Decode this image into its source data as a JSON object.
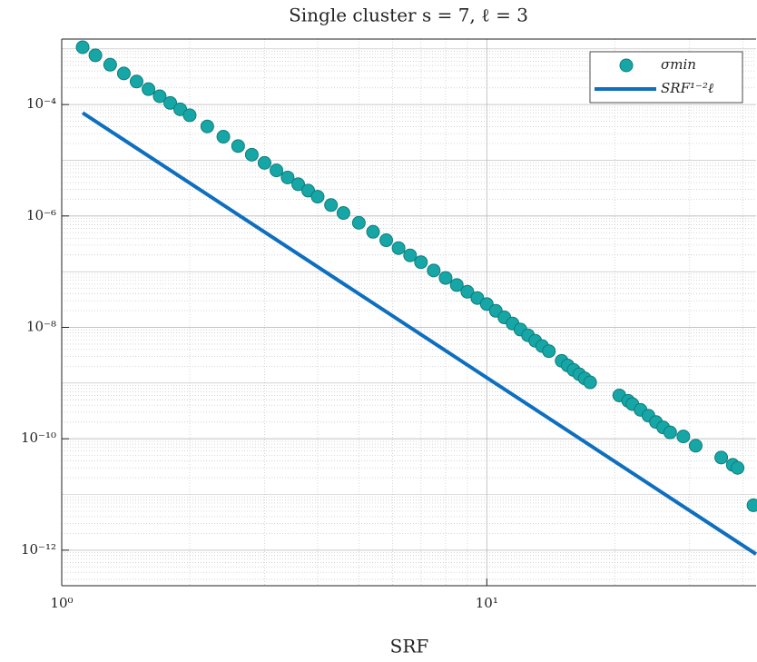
{
  "chart_data": {
    "type": "scatter-line",
    "title": "Single cluster s = 7, ℓ = 3",
    "x_label": "SRF",
    "xscale": "log",
    "yscale": "log",
    "grid": true,
    "legend": "upper right",
    "xlim": [
      1,
      43
    ],
    "ylim": [
      2.3e-13,
      0.0015
    ],
    "xticks": [
      {
        "value": 1,
        "label": "10⁰"
      },
      {
        "value": 10,
        "label": "10¹"
      }
    ],
    "yticks": [
      {
        "value": 0.0001,
        "label": "10⁻⁴"
      },
      {
        "value": 1e-06,
        "label": "10⁻⁶"
      },
      {
        "value": 1e-08,
        "label": "10⁻⁸"
      },
      {
        "value": 1e-10,
        "label": "10⁻¹⁰"
      },
      {
        "value": 1e-12,
        "label": "10⁻¹²"
      }
    ],
    "series": [
      {
        "name": "σmin",
        "kind": "scatter",
        "color": "#17a6a6",
        "edgecolor": "#0e7d7d",
        "x": [
          1.12,
          1.2,
          1.3,
          1.4,
          1.5,
          1.6,
          1.7,
          1.8,
          1.9,
          2.0,
          2.2,
          2.4,
          2.6,
          2.8,
          3.0,
          3.2,
          3.4,
          3.6,
          3.8,
          4.0,
          4.3,
          4.6,
          5.0,
          5.4,
          5.8,
          6.2,
          6.6,
          7.0,
          7.5,
          8.0,
          8.5,
          9.0,
          9.5,
          10,
          10.5,
          11,
          11.5,
          12,
          12.5,
          13,
          13.5,
          14,
          15,
          15.5,
          16,
          16.5,
          17,
          17.5,
          20.5,
          21.5,
          22,
          23,
          24,
          25,
          26,
          27,
          29,
          31,
          35.6,
          37.9,
          38.9,
          42.4
        ],
        "values": [
          0.00107,
          0.000766,
          0.000519,
          0.000362,
          0.000259,
          0.000189,
          0.000141,
          0.000107,
          8.22e-05,
          6.43e-05,
          4.05e-05,
          2.65e-05,
          1.8e-05,
          1.26e-05,
          8.97e-06,
          6.58e-06,
          4.9e-06,
          3.71e-06,
          2.85e-06,
          2.22e-06,
          1.57e-06,
          1.13e-06,
          7.53e-07,
          5.19e-07,
          3.67e-07,
          2.65e-07,
          1.96e-07,
          1.48e-07,
          1.05e-07,
          7.71e-08,
          5.75e-08,
          4.36e-08,
          3.36e-08,
          2.62e-08,
          1.98e-08,
          1.51e-08,
          1.17e-08,
          9.14e-09,
          7.21e-09,
          5.74e-09,
          4.61e-09,
          3.74e-09,
          2.51e-09,
          2.07e-09,
          1.72e-09,
          1.44e-09,
          1.21e-09,
          1.03e-09,
          6e-10,
          4.8e-10,
          4.2e-10,
          3.3e-10,
          2.6e-10,
          2e-10,
          1.6e-10,
          1.3e-10,
          1.1e-10,
          7.5e-11,
          4.6e-11,
          3.4e-11,
          3e-11,
          6.4e-12
        ]
      },
      {
        "name": "SRF¹⁻²ℓ",
        "kind": "line",
        "color": "#0e6fbf",
        "x": [
          1.12,
          43
        ],
        "values": [
          7.1e-05,
          8.5e-13
        ]
      }
    ]
  }
}
